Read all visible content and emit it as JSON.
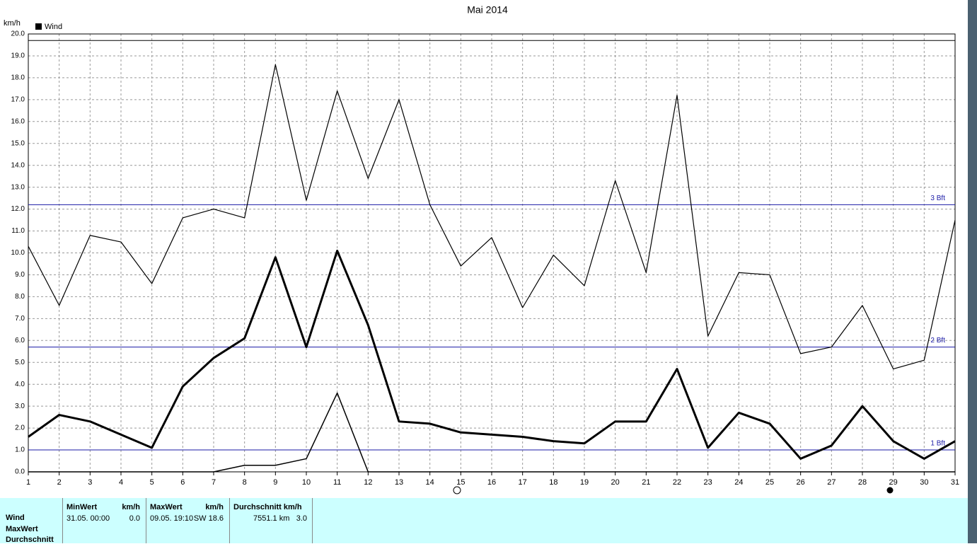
{
  "chart_data": {
    "type": "line",
    "title": "Mai 2014",
    "y_label": "km/h",
    "legend": "Wind",
    "x": [
      1,
      2,
      3,
      4,
      5,
      6,
      7,
      8,
      9,
      10,
      11,
      12,
      13,
      14,
      15,
      16,
      17,
      18,
      19,
      20,
      21,
      22,
      23,
      24,
      25,
      26,
      27,
      28,
      29,
      30,
      31
    ],
    "series": [
      {
        "color": "#000000",
        "line_width": 1.2,
        "values": [
          10.3,
          7.6,
          10.8,
          10.5,
          8.6,
          11.6,
          12.0,
          11.6,
          18.6,
          12.4,
          17.4,
          13.4,
          17.0,
          12.2,
          9.4,
          10.7,
          7.5,
          9.9,
          8.5,
          13.3,
          9.1,
          17.2,
          6.2,
          9.1,
          9.0,
          5.4,
          5.7,
          7.6,
          4.7,
          5.1,
          11.5
        ]
      },
      {
        "color": "#000000",
        "line_width": 3,
        "values": [
          1.6,
          2.6,
          2.3,
          1.7,
          1.1,
          3.9,
          5.2,
          6.1,
          9.8,
          5.7,
          10.1,
          6.7,
          2.3,
          2.2,
          1.8,
          1.7,
          1.6,
          1.4,
          1.3,
          2.3,
          2.3,
          4.7,
          1.1,
          2.7,
          2.2,
          0.6,
          1.2,
          3.0,
          1.4,
          0.6,
          1.4
        ]
      },
      {
        "color": "#000000",
        "line_width": 1.5,
        "values": [
          0.0,
          0.0,
          0.0,
          0.0,
          0.0,
          0.0,
          0.0,
          0.3,
          0.3,
          0.6,
          3.6,
          0.0,
          0.0,
          0.0,
          0.0,
          0.0,
          0.0,
          0.0,
          0.0,
          0.0,
          0.0,
          0.0,
          0.0,
          0.0,
          0.0,
          0.0,
          0.0,
          0.0,
          0.0,
          0.0,
          0.0
        ]
      }
    ],
    "reference_lines": [
      {
        "value": 1.0,
        "label": "1 Bft"
      },
      {
        "value": 5.7,
        "label": "2 Bft"
      },
      {
        "value": 12.2,
        "label": "3 Bft"
      }
    ],
    "top_line": 19.7,
    "reference_color": "#1a1aa6",
    "xlim": [
      1,
      31
    ],
    "ylim": [
      0,
      20
    ],
    "xticks": [
      1,
      2,
      3,
      4,
      5,
      6,
      7,
      8,
      9,
      10,
      11,
      12,
      13,
      14,
      15,
      16,
      17,
      18,
      19,
      20,
      21,
      22,
      23,
      24,
      25,
      26,
      27,
      28,
      29,
      30,
      31
    ],
    "yticks": [
      {
        "value": 0,
        "label": "0.0"
      },
      {
        "value": 1,
        "label": "1.0"
      },
      {
        "value": 2,
        "label": "2.0"
      },
      {
        "value": 3,
        "label": "3.0"
      },
      {
        "value": 4,
        "label": "4.0"
      },
      {
        "value": 5,
        "label": "5.0"
      },
      {
        "value": 6,
        "label": "6.0"
      },
      {
        "value": 7,
        "label": "7.0"
      },
      {
        "value": 8,
        "label": "8.0"
      },
      {
        "value": 9,
        "label": "9.0"
      },
      {
        "value": 10,
        "label": "10.0"
      },
      {
        "value": 11,
        "label": "11.0"
      },
      {
        "value": 12,
        "label": "12.0"
      },
      {
        "value": 13,
        "label": "13.0"
      },
      {
        "value": 14,
        "label": "14.0"
      },
      {
        "value": 15,
        "label": "15.0"
      },
      {
        "value": 16,
        "label": "16.0"
      },
      {
        "value": 17,
        "label": "17.0"
      },
      {
        "value": 18,
        "label": "18.0"
      },
      {
        "value": 19,
        "label": "19.0"
      },
      {
        "value": 20,
        "label": "20.0"
      }
    ],
    "grid": true
  },
  "stats_table": {
    "row_labels": [
      "Wind",
      "MaxWert",
      "Durchschnitt"
    ],
    "headers": [
      [
        "MinWert",
        "km/h"
      ],
      [
        "MaxWert",
        "km/h"
      ],
      [
        "Durchschnitt km/h"
      ]
    ],
    "row": [
      [
        "31.05.  00:00",
        "0.0"
      ],
      [
        "09.05.  19:10",
        "SW 18.6"
      ],
      [
        "7551.1 km",
        "3.0"
      ]
    ]
  }
}
